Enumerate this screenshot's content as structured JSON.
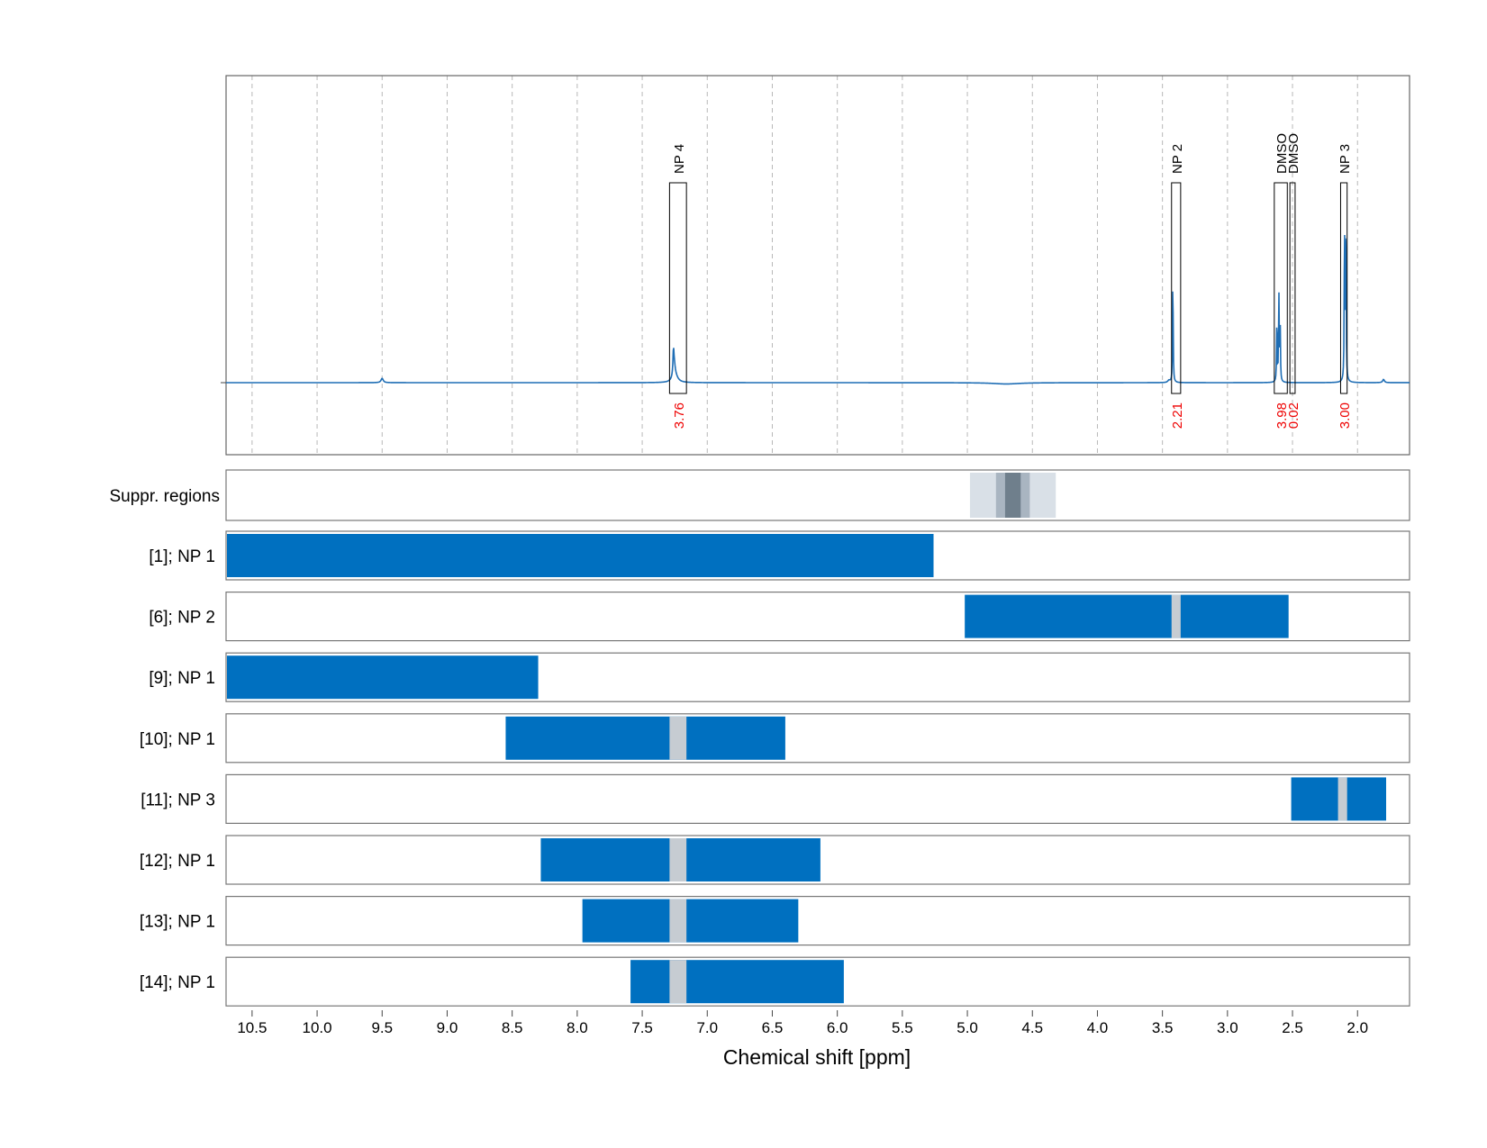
{
  "chart_data": {
    "type": "nmr-spectrum-with-range-tracks",
    "xlabel": "Chemical shift [ppm]",
    "x_reversed": true,
    "xlim": [
      10.7,
      1.6
    ],
    "x_ticks": [
      "10.5",
      "10.0",
      "9.5",
      "9.0",
      "8.5",
      "8.0",
      "7.5",
      "7.0",
      "6.5",
      "6.0",
      "5.5",
      "5.0",
      "4.5",
      "4.0",
      "3.5",
      "3.0",
      "2.5",
      "2.0"
    ],
    "grid": "vertical dashed",
    "colors": {
      "spectrum": "#1f6eb5",
      "range": "#0070c0",
      "gap": "#c6ccd2",
      "integral": "#ee0000",
      "suppr_light": "#d9e0e7",
      "suppr_mid": "#a9b5c1",
      "suppr_dark": "#6f7f8c"
    },
    "spectrum": {
      "peaks": [
        {
          "ppm": 9.5,
          "height": 0.02,
          "width": 0.01
        },
        {
          "ppm": 7.26,
          "height": 0.095,
          "width": 0.004
        },
        {
          "ppm": 7.255,
          "height": 0.07,
          "width": 0.01
        },
        {
          "ppm": 7.245,
          "height": 0.025,
          "width": 0.025
        },
        {
          "ppm": 3.42,
          "height": 0.55,
          "width": 0.0025
        },
        {
          "ppm": 3.45,
          "height": 0.01,
          "width": 0.01
        },
        {
          "ppm": 2.605,
          "height": 0.43,
          "width": 0.0025
        },
        {
          "ppm": 2.62,
          "height": 0.33,
          "width": 0.0025
        },
        {
          "ppm": 2.595,
          "height": 0.3,
          "width": 0.0025
        },
        {
          "ppm": 2.09,
          "height": 0.88,
          "width": 0.0025
        },
        {
          "ppm": 2.1,
          "height": 0.8,
          "width": 0.0025
        },
        {
          "ppm": 1.8,
          "height": 0.015,
          "width": 0.008
        },
        {
          "ppm": 4.7,
          "height": -0.006,
          "width": 0.12
        }
      ],
      "annotations": [
        {
          "label": "NP 4",
          "integral": "3.76",
          "ppm_range": [
            7.29,
            7.16
          ]
        },
        {
          "label": "NP 2",
          "integral": "2.21",
          "ppm_range": [
            3.43,
            3.36
          ]
        },
        {
          "label": "DMSO",
          "integral": "3.98",
          "ppm_range": [
            2.64,
            2.54
          ]
        },
        {
          "label": "DMSO",
          "integral": "0.02",
          "ppm_range": [
            2.52,
            2.48
          ]
        },
        {
          "label": "NP 3",
          "integral": "3.00",
          "ppm_range": [
            2.13,
            2.08
          ]
        }
      ]
    },
    "suppressed_regions": {
      "label": "Suppr. regions",
      "bands": [
        {
          "ppm_range": [
            4.98,
            4.32
          ],
          "level": "light"
        },
        {
          "ppm_range": [
            4.78,
            4.52
          ],
          "level": "mid"
        },
        {
          "ppm_range": [
            4.71,
            4.59
          ],
          "level": "dark"
        }
      ]
    },
    "tracks": [
      {
        "label": "[1]; NP 1",
        "ranges": [
          [
            10.7,
            5.26
          ]
        ],
        "gaps": []
      },
      {
        "label": "[6]; NP 2",
        "ranges": [
          [
            5.02,
            2.53
          ]
        ],
        "gaps": [
          [
            3.43,
            3.36
          ]
        ]
      },
      {
        "label": "[9]; NP 1",
        "ranges": [
          [
            10.7,
            8.3
          ]
        ],
        "gaps": []
      },
      {
        "label": "[10]; NP 1",
        "ranges": [
          [
            8.55,
            6.4
          ]
        ],
        "gaps": [
          [
            7.29,
            7.16
          ]
        ]
      },
      {
        "label": "[11]; NP 3",
        "ranges": [
          [
            2.51,
            1.78
          ]
        ],
        "gaps": [
          [
            2.15,
            2.08
          ]
        ]
      },
      {
        "label": "[12]; NP 1",
        "ranges": [
          [
            8.28,
            6.13
          ]
        ],
        "gaps": [
          [
            7.29,
            7.16
          ]
        ]
      },
      {
        "label": "[13]; NP 1",
        "ranges": [
          [
            7.96,
            6.3
          ]
        ],
        "gaps": [
          [
            7.29,
            7.16
          ]
        ]
      },
      {
        "label": "[14]; NP 1",
        "ranges": [
          [
            7.59,
            5.95
          ]
        ],
        "gaps": [
          [
            7.29,
            7.16
          ]
        ]
      }
    ]
  }
}
